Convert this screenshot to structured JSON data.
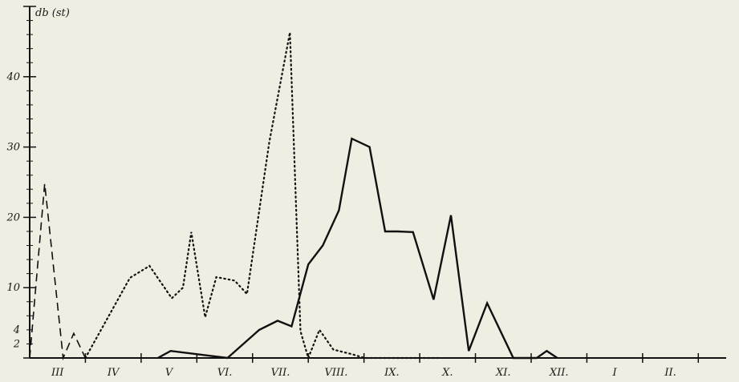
{
  "chart_data": {
    "type": "line",
    "ylabel": "db (st)",
    "xlabel": "",
    "title": "",
    "y_tick_labels": [
      2,
      4,
      10,
      20,
      30,
      40
    ],
    "ylim": [
      0,
      50
    ],
    "months": [
      "III",
      "IV",
      "V",
      "VI.",
      "VII.",
      "VIII.",
      "IX.",
      "X.",
      "XI.",
      "XII.",
      "I",
      "II."
    ],
    "x_unit": "month",
    "xlim": [
      0,
      12.5
    ],
    "grid": false,
    "legend": "none",
    "series": [
      {
        "style": "solid",
        "x": [
          2.3,
          2.53,
          3.55,
          4.12,
          4.45,
          4.7,
          5.0,
          5.26,
          5.55,
          5.78,
          6.1,
          6.38,
          6.6,
          6.88,
          7.25,
          7.56,
          7.88,
          8.21,
          8.68,
          9.1,
          9.28,
          9.47,
          9.99,
          10.16,
          10.53,
          10.75
        ],
        "y": [
          0,
          1,
          0,
          4,
          5.3,
          4.5,
          13.3,
          16,
          21,
          31.2,
          30,
          18,
          18,
          17.9,
          8.3,
          20.3,
          1.0,
          7.8,
          0,
          0,
          1.0,
          0,
          null,
          null,
          null,
          null
        ]
      },
      {
        "style": "dashed",
        "x": [
          0.0,
          0.27,
          0.6,
          0.79,
          1.0,
          2.03,
          2.35,
          2.53,
          2.7,
          2.88,
          3.4,
          3.67,
          4.12,
          4.79,
          5.18,
          5.33,
          5.5,
          5.88,
          6.05,
          6.47,
          6.68,
          6.93,
          7.32,
          7.77,
          8.2,
          8.73,
          9.2,
          9.27,
          9.64,
          10.16,
          10.8
        ],
        "y": [
          0,
          24.8,
          0,
          3.5,
          0,
          0,
          0,
          0,
          0,
          0,
          0,
          0,
          0,
          0,
          0,
          0,
          0,
          0,
          0,
          0,
          0,
          0,
          0,
          0,
          0,
          0,
          0,
          0,
          0,
          0,
          0
        ]
      },
      {
        "style": "dotted",
        "x": [
          1.0,
          1.8,
          2.15,
          2.55,
          2.75,
          2.9,
          3.15,
          3.35,
          3.68,
          3.9,
          4.3,
          4.67,
          4.86,
          5.0,
          5.2,
          5.45,
          5.8,
          6.01,
          6.2,
          6.51,
          6.89,
          7.18,
          7.33
        ],
        "y": [
          0,
          11.4,
          13.1,
          8.5,
          10.0,
          17.9,
          5.8,
          11.5,
          11.0,
          9.1,
          30.7,
          46.3,
          3.8,
          0,
          4.0,
          1.2,
          0.5,
          0,
          0,
          0,
          0,
          0,
          0
        ]
      }
    ]
  }
}
